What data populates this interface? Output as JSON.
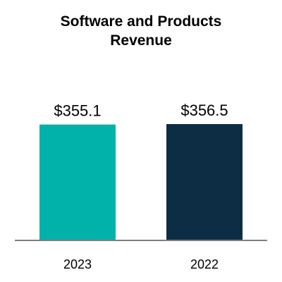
{
  "chart_data": {
    "type": "bar",
    "title_lines": [
      "Software and Products",
      "Revenue"
    ],
    "categories": [
      "2023",
      "2022"
    ],
    "values": [
      355.1,
      356.5
    ],
    "data_labels": [
      "$355.1",
      "$356.5"
    ],
    "colors": [
      "#00b2a9",
      "#0d2d45"
    ],
    "axis_color": "#7f7f7f",
    "legend": "none",
    "grid": false
  }
}
